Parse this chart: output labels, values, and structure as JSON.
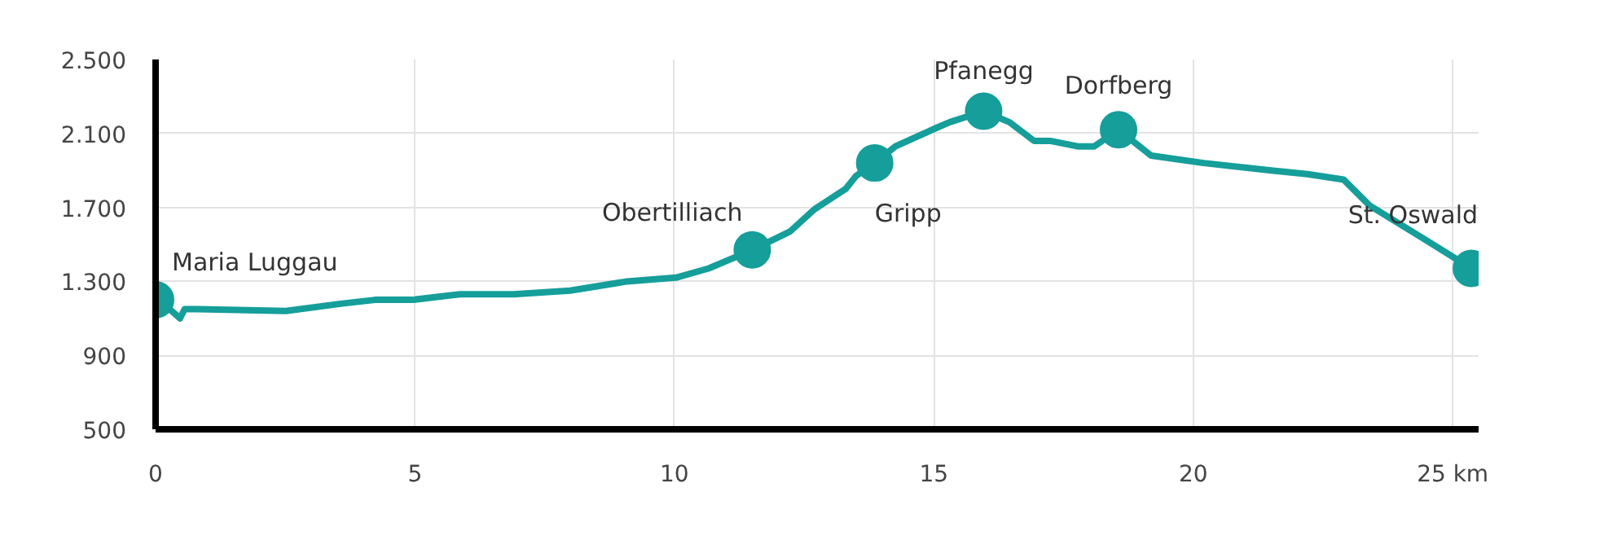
{
  "chart_data": {
    "type": "line",
    "x": [
      0,
      0.31,
      0.47,
      0.56,
      0.78,
      2.51,
      3.6,
      4.23,
      4.95,
      5.86,
      6.9,
      7.99,
      9.09,
      10.03,
      10.66,
      11.5,
      12.23,
      12.7,
      13.3,
      13.5,
      13.86,
      14.26,
      15.05,
      15.3,
      15.96,
      16.46,
      16.93,
      17.24,
      17.77,
      18.09,
      18.56,
      19.19,
      20.2,
      21.5,
      22.2,
      22.9,
      23.4,
      24.5,
      25.36
    ],
    "series": [
      {
        "color": "#159e9a",
        "marker": "none",
        "values": [
          1200,
          1140,
          1100,
          1150,
          1150,
          1140,
          1180,
          1200,
          1200,
          1230,
          1230,
          1250,
          1300,
          1320,
          1370,
          1470,
          1570,
          1690,
          1800,
          1870,
          1940,
          2030,
          2130,
          2160,
          2220,
          2160,
          2060,
          2060,
          2030,
          2030,
          2120,
          1980,
          1940,
          1900,
          1880,
          1850,
          1710,
          1520,
          1370
        ]
      },
      {
        "type": "scatter",
        "color": "#159e9a",
        "marker": "circle",
        "x": [
          0,
          11.5,
          13.86,
          15.96,
          18.56,
          25.36
        ],
        "values": [
          1200,
          1470,
          1940,
          2220,
          2120,
          1370
        ]
      }
    ],
    "annotations": [
      {
        "text": "Maria Luggau",
        "x": 0,
        "y": 1200
      },
      {
        "text": "Obertilliach",
        "x": 11.5,
        "y": 1470
      },
      {
        "text": "Gripp",
        "x": 13.86,
        "y": 1940
      },
      {
        "text": "Pfanegg",
        "x": 15.96,
        "y": 2220
      },
      {
        "text": "Dorfberg",
        "x": 18.56,
        "y": 2120
      },
      {
        "text": "St. Oswald",
        "x": 25.36,
        "y": 1370
      }
    ],
    "xlim": [
      0,
      25.5
    ],
    "ylim": [
      500,
      2500
    ],
    "xticks": [
      0,
      5,
      10,
      15,
      20,
      {
        "value": 25,
        "label": "25 km"
      }
    ],
    "yticks": [
      500,
      900,
      {
        "value": 1300,
        "label": "1.300"
      },
      {
        "value": 1700,
        "label": "1.700"
      },
      {
        "value": 2100,
        "label": "2.100"
      },
      {
        "value": 2500,
        "label": "2.500"
      }
    ],
    "grid": true
  }
}
